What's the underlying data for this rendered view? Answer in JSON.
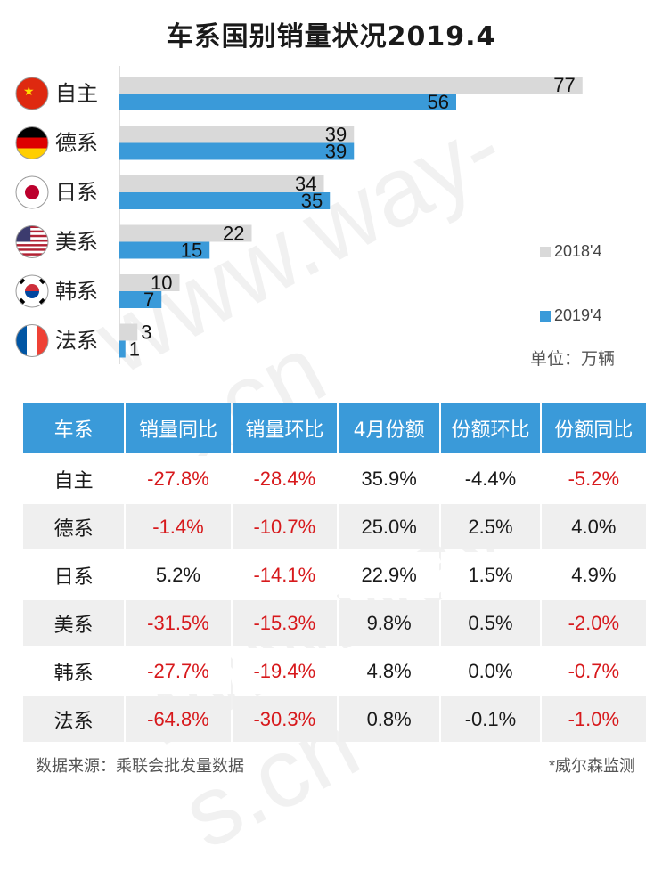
{
  "title": "车系国别销量状况2019.4",
  "colors": {
    "series_2018": "#d9d9d9",
    "series_2019": "#3a9ad9",
    "negative": "#d7191c",
    "header": "#3a9ad9"
  },
  "chart_data": {
    "type": "bar",
    "orientation": "horizontal",
    "title": "车系国别销量状况2019.4",
    "categories": [
      "自主",
      "德系",
      "日系",
      "美系",
      "韩系",
      "法系"
    ],
    "category_flags": [
      "china-flag-icon",
      "germany-flag-icon",
      "japan-flag-icon",
      "usa-flag-icon",
      "korea-flag-icon",
      "france-flag-icon"
    ],
    "series": [
      {
        "name": "2018'4",
        "values": [
          77,
          39,
          34,
          22,
          10,
          3
        ]
      },
      {
        "name": "2019'4",
        "values": [
          56,
          39,
          35,
          15,
          7,
          1
        ]
      }
    ],
    "unit_label": "单位：万辆",
    "xlim": [
      0,
      80
    ],
    "legend_position": "right",
    "grid": false
  },
  "table": {
    "headers": [
      "车系",
      "销量同比",
      "销量环比",
      "4月份额",
      "份额环比",
      "份额同比"
    ],
    "rows": [
      [
        "自主",
        "-27.8%",
        "-28.4%",
        "35.9%",
        "-4.4%",
        "-5.2%"
      ],
      [
        "德系",
        "-1.4%",
        "-10.7%",
        "25.0%",
        "2.5%",
        "4.0%"
      ],
      [
        "日系",
        "5.2%",
        "-14.1%",
        "22.9%",
        "1.5%",
        "4.9%"
      ],
      [
        "美系",
        "-31.5%",
        "-15.3%",
        "9.8%",
        "0.5%",
        "-2.0%"
      ],
      [
        "韩系",
        "-27.7%",
        "-19.4%",
        "4.8%",
        "0.0%",
        "-0.7%"
      ],
      [
        "法系",
        "-64.8%",
        "-30.3%",
        "0.8%",
        "-0.1%",
        "-1.0%"
      ]
    ]
  },
  "footer": {
    "source": "数据来源：乘联会批发量数据",
    "credit": "*威尔森监测"
  },
  "watermark": "www.way-s.cn"
}
